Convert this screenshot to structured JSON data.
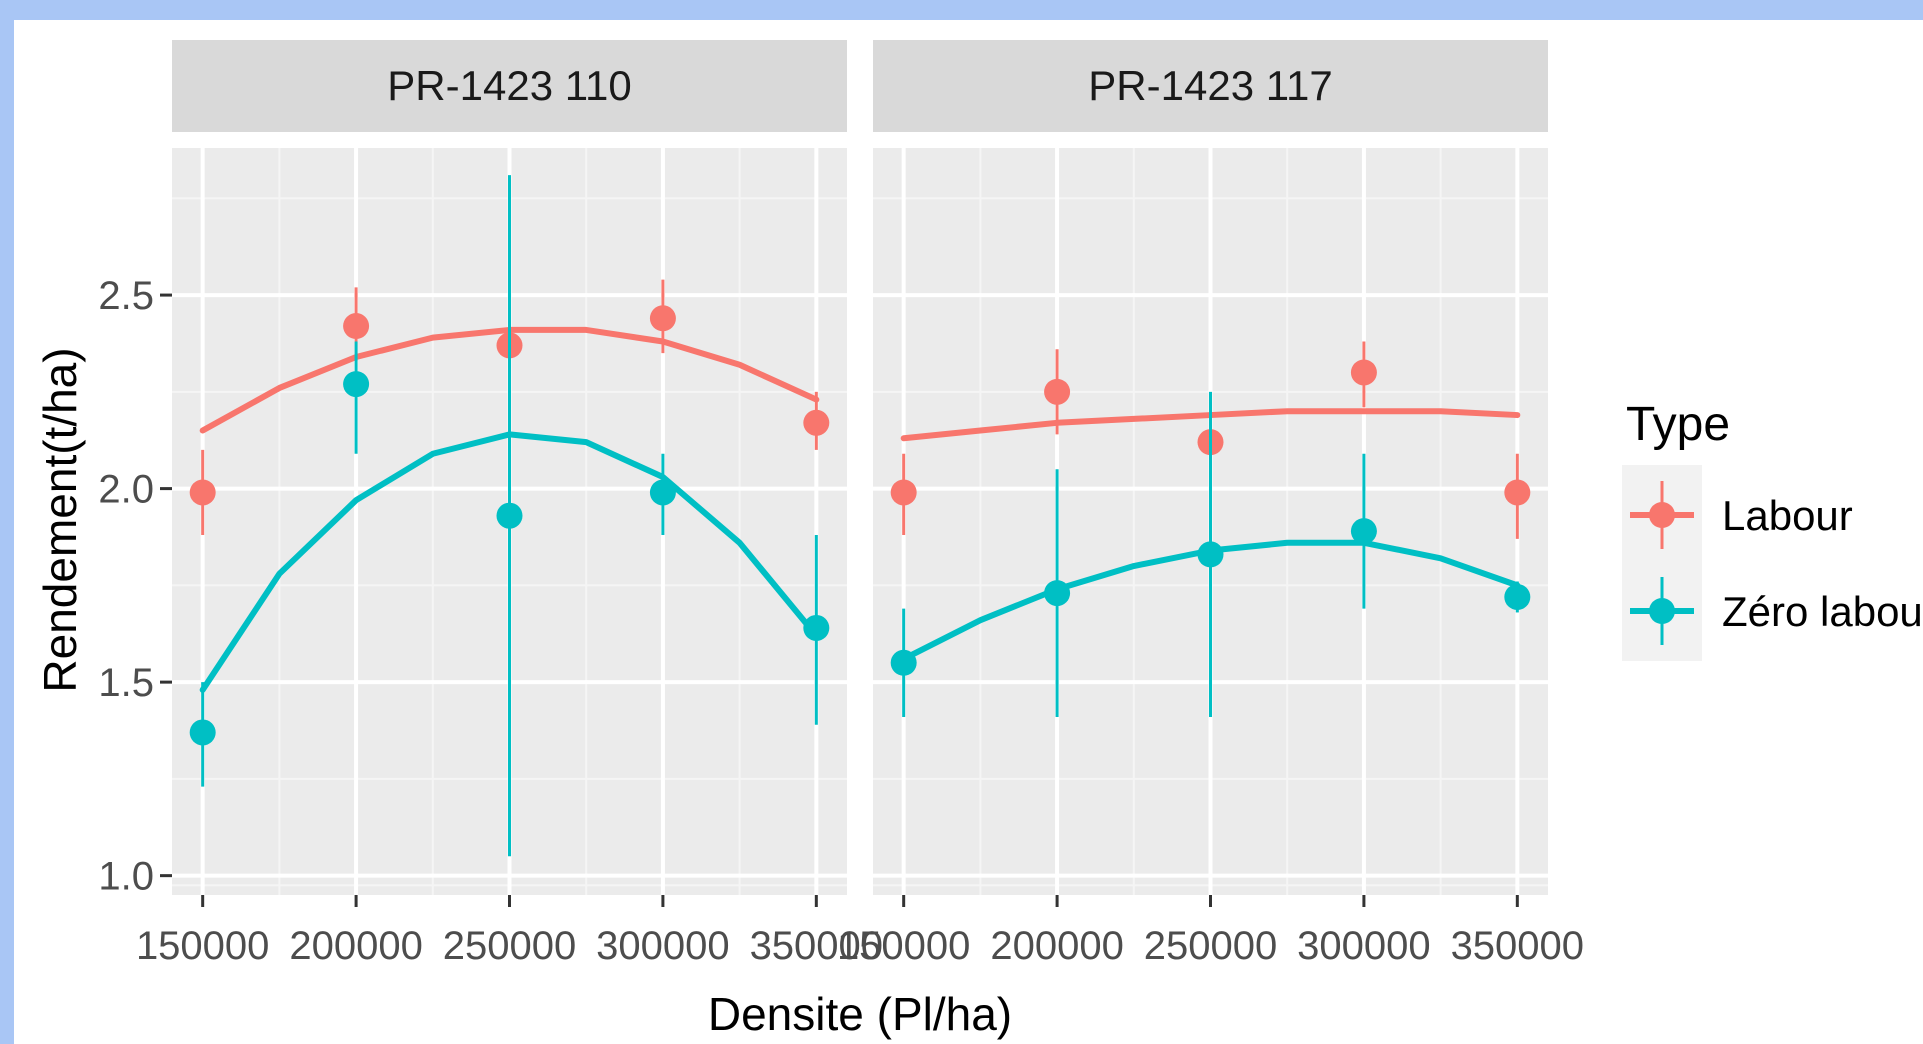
{
  "chart_data": {
    "type": "scatter",
    "facets": [
      "PR-1423 110",
      "PR-1423 117"
    ],
    "xlabel": "Densite (Pl/ha)",
    "ylabel": "Rendement(t/ha)",
    "x_ticks": [
      150000,
      200000,
      250000,
      300000,
      350000
    ],
    "x_tick_labels": [
      "150000",
      "200000",
      "250000",
      "300000",
      "350000"
    ],
    "y_ticks": [
      1.0,
      1.5,
      2.0,
      2.5
    ],
    "y_tick_labels": [
      "1.0",
      "1.5",
      "2.0",
      "2.5"
    ],
    "xlim": [
      140000,
      360000
    ],
    "ylim": [
      0.95,
      2.88
    ],
    "grid": true,
    "legend_title": "Type",
    "legend_position": "right",
    "series": [
      {
        "name": "Labour",
        "color": "#f8766d",
        "panels": {
          "PR-1423 110": {
            "x": [
              150000,
              200000,
              250000,
              300000,
              350000
            ],
            "y": [
              1.99,
              2.42,
              2.37,
              2.44,
              2.17
            ],
            "ymin": [
              1.88,
              2.33,
              2.25,
              2.35,
              2.1
            ],
            "ymax": [
              2.1,
              2.52,
              2.48,
              2.54,
              2.25
            ],
            "fit_x": [
              150000,
              175000,
              200000,
              225000,
              250000,
              275000,
              300000,
              325000,
              350000
            ],
            "fit_y": [
              2.15,
              2.26,
              2.34,
              2.39,
              2.41,
              2.41,
              2.38,
              2.32,
              2.23
            ]
          },
          "PR-1423 117": {
            "x": [
              150000,
              200000,
              250000,
              300000,
              350000
            ],
            "y": [
              1.99,
              2.25,
              2.12,
              2.3,
              1.99
            ],
            "ymin": [
              1.88,
              2.14,
              2.0,
              2.21,
              1.87
            ],
            "ymax": [
              2.09,
              2.36,
              2.24,
              2.38,
              2.09
            ],
            "fit_x": [
              150000,
              175000,
              200000,
              225000,
              250000,
              275000,
              300000,
              325000,
              350000
            ],
            "fit_y": [
              2.13,
              2.15,
              2.17,
              2.18,
              2.19,
              2.2,
              2.2,
              2.2,
              2.19
            ]
          }
        }
      },
      {
        "name": "Zéro labour",
        "color": "#00bfc4",
        "panels": {
          "PR-1423 110": {
            "x": [
              150000,
              200000,
              250000,
              300000,
              350000
            ],
            "y": [
              1.37,
              2.27,
              1.93,
              1.99,
              1.64
            ],
            "ymin": [
              1.23,
              2.09,
              1.05,
              1.88,
              1.39
            ],
            "ymax": [
              1.5,
              2.38,
              2.81,
              2.09,
              1.88
            ],
            "fit_x": [
              150000,
              175000,
              200000,
              225000,
              250000,
              275000,
              300000,
              325000,
              350000
            ],
            "fit_y": [
              1.48,
              1.78,
              1.97,
              2.09,
              2.14,
              2.12,
              2.03,
              1.86,
              1.62
            ]
          },
          "PR-1423 117": {
            "x": [
              150000,
              200000,
              250000,
              300000,
              350000
            ],
            "y": [
              1.55,
              1.73,
              1.83,
              1.89,
              1.72
            ],
            "ymin": [
              1.41,
              1.41,
              1.41,
              1.69,
              1.68
            ],
            "ymax": [
              1.69,
              2.05,
              2.25,
              2.09,
              1.76
            ],
            "fit_x": [
              150000,
              175000,
              200000,
              225000,
              250000,
              275000,
              300000,
              325000,
              350000
            ],
            "fit_y": [
              1.56,
              1.66,
              1.74,
              1.8,
              1.84,
              1.86,
              1.86,
              1.82,
              1.75
            ]
          }
        }
      }
    ]
  }
}
